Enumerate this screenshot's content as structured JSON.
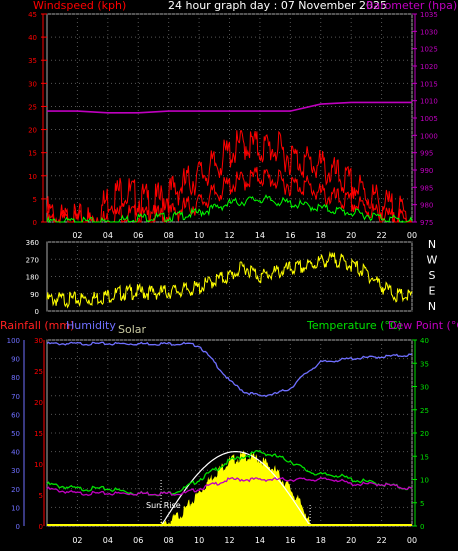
{
  "colors": {
    "wind": "#ff0000",
    "gust": "#ff0000",
    "windavg": "#00ff00",
    "windlow": "#ffffff",
    "baro": "#c000c0",
    "dir": "#ffff00",
    "rain": "#ff2020",
    "humidity": "#6f6fff",
    "solar": "#ffff00",
    "temp": "#00e000",
    "dew": "#c000c0",
    "axis_red": "#ff0000",
    "axis_mag": "#c000c0",
    "axis_blue": "#6f6fff",
    "axis_green": "#00e000",
    "grid": "#555555",
    "frame": "#aaaaaa",
    "sunrise_text": "#ffffff",
    "solar_label": "#c8c8a0"
  },
  "header": {
    "wind_label": "Windspeed (kph)",
    "title": "24 hour graph day : 07 November 2025",
    "baro_label": "Barometer (hpa)"
  },
  "panel3_labels": {
    "rain": "Rainfall (mm)",
    "humidity": "Humidity",
    "solar": "Solar",
    "temp": "Temperature (°C)",
    "dew": "Dew Point (°C)",
    "sunrise": "Sun Rise"
  },
  "compass": [
    "N",
    "W",
    "S",
    "E",
    "N"
  ],
  "x_tick_labels": [
    "02",
    "04",
    "06",
    "08",
    "10",
    "12",
    "14",
    "16",
    "18",
    "20",
    "22",
    "00"
  ],
  "chart_data": [
    {
      "type": "line",
      "x_range_hours": [
        0,
        24
      ],
      "y_left": {
        "label": "Windspeed (kph)",
        "ticks": [
          0,
          5,
          10,
          15,
          20,
          25,
          30,
          35,
          40,
          45
        ],
        "ylim": [
          0,
          45
        ]
      },
      "y_right": {
        "label": "Barometer (hpa)",
        "ticks": [
          975,
          980,
          985,
          990,
          995,
          1000,
          1005,
          1010,
          1015,
          1020,
          1025,
          1030,
          1035
        ],
        "ylim": [
          975,
          1035
        ]
      },
      "series": [
        {
          "name": "Barometer (hpa)",
          "x": [
            0,
            2,
            4,
            6,
            8,
            10,
            12,
            14,
            16,
            18,
            20,
            22,
            24
          ],
          "values": [
            1007,
            1007,
            1006.5,
            1006.5,
            1007,
            1007,
            1007,
            1007,
            1007,
            1009,
            1009.5,
            1009.5,
            1009.5
          ]
        },
        {
          "name": "Windspeed (kph)",
          "x": [
            0,
            1,
            2,
            3,
            4,
            5,
            6,
            7,
            8,
            9,
            10,
            11,
            12,
            13,
            14,
            15,
            16,
            17,
            18,
            19,
            20,
            21,
            22,
            23,
            24
          ],
          "values": [
            0,
            0,
            0,
            0,
            0.5,
            2,
            1,
            1,
            1.5,
            3,
            4,
            6,
            8,
            9,
            10,
            9,
            8,
            8,
            6,
            5,
            4,
            3,
            1,
            0.5,
            0
          ]
        },
        {
          "name": "Gust (kph)",
          "x": [
            0,
            1,
            2,
            3,
            4,
            5,
            6,
            7,
            8,
            9,
            10,
            11,
            12,
            13,
            14,
            15,
            16,
            17,
            18,
            19,
            20,
            21,
            22,
            23,
            24
          ],
          "values": [
            2,
            0,
            0,
            0,
            5,
            7,
            5,
            4,
            6,
            8,
            10,
            12,
            15,
            17,
            16,
            16,
            14,
            13,
            12,
            10,
            8,
            6,
            4,
            2,
            1
          ]
        },
        {
          "name": "Average (kph)",
          "x": [
            0,
            2,
            4,
            6,
            8,
            10,
            12,
            14,
            16,
            18,
            20,
            22,
            24
          ],
          "values": [
            0,
            0,
            0,
            1,
            1,
            2,
            4,
            5,
            4,
            3,
            2,
            1,
            0
          ]
        }
      ]
    },
    {
      "type": "line",
      "x_range_hours": [
        0,
        24
      ],
      "y_left": {
        "ticks": [
          0,
          30,
          60,
          90,
          120,
          150,
          180,
          210,
          240,
          270,
          300,
          330,
          360
        ],
        "tick_labels": [
          "0",
          "90",
          "180",
          "270",
          "360"
        ],
        "ylim": [
          0,
          360
        ]
      },
      "series": [
        {
          "name": "Wind Direction (deg)",
          "x": [
            0,
            2,
            3,
            4,
            5,
            6,
            7,
            8,
            9,
            10,
            11,
            12,
            13,
            14,
            15,
            16,
            17,
            18,
            19,
            20,
            21,
            22,
            23,
            24
          ],
          "values": [
            60,
            60,
            65,
            80,
            95,
            100,
            95,
            100,
            110,
            120,
            160,
            180,
            230,
            180,
            200,
            220,
            230,
            260,
            270,
            240,
            200,
            130,
            80,
            75
          ]
        }
      ]
    },
    {
      "type": "line",
      "x_range_hours": [
        0,
        24
      ],
      "y_left_outer": {
        "label": "Humidity",
        "ticks": [
          0,
          10,
          20,
          30,
          40,
          50,
          60,
          70,
          80,
          90,
          100
        ],
        "ylim": [
          0,
          100
        ]
      },
      "y_left_inner": {
        "label": "Rainfall (mm)",
        "ticks": [
          0,
          5,
          10,
          15,
          20,
          25,
          30
        ],
        "ylim": [
          0,
          30
        ]
      },
      "y_right": {
        "label": "Temperature (°C)",
        "ticks": [
          0,
          5,
          10,
          15,
          20,
          25,
          30,
          35,
          40
        ],
        "ylim": [
          0,
          40
        ]
      },
      "series": [
        {
          "name": "Humidity",
          "x": [
            0,
            2,
            4,
            6,
            8,
            9,
            10,
            11,
            12,
            13,
            14,
            15,
            16,
            17,
            18,
            20,
            22,
            24
          ],
          "values": [
            98,
            98,
            98,
            98,
            98,
            98,
            97,
            88,
            78,
            72,
            70,
            71,
            74,
            82,
            88,
            90,
            91,
            92
          ]
        },
        {
          "name": "Temperature (°C)",
          "x": [
            0,
            2,
            4,
            6,
            8,
            9,
            10,
            11,
            12,
            13,
            14,
            15,
            16,
            17,
            18,
            19,
            20,
            22,
            24
          ],
          "values": [
            9,
            8,
            8,
            7,
            7,
            8,
            10,
            12,
            14,
            15,
            16,
            15,
            14,
            12,
            11,
            11,
            10,
            9,
            8
          ]
        },
        {
          "name": "Dew Point (°C)",
          "x": [
            0,
            2,
            4,
            6,
            8,
            9,
            10,
            11,
            12,
            13,
            14,
            15,
            16,
            17,
            18,
            19,
            20,
            22,
            24
          ],
          "values": [
            8,
            7,
            7,
            7,
            7,
            7,
            8,
            9,
            10,
            10,
            10,
            10,
            10,
            10,
            10,
            10,
            9,
            9,
            8
          ]
        },
        {
          "name": "Solar",
          "x": [
            7.5,
            8,
            9,
            10,
            11,
            12,
            13,
            14,
            15,
            16,
            17,
            17.3
          ],
          "values": [
            0,
            2,
            8,
            18,
            28,
            35,
            38,
            36,
            30,
            20,
            8,
            0
          ]
        },
        {
          "name": "Rainfall (mm)",
          "x": [
            0,
            24
          ],
          "values": [
            0,
            0
          ]
        }
      ]
    }
  ]
}
